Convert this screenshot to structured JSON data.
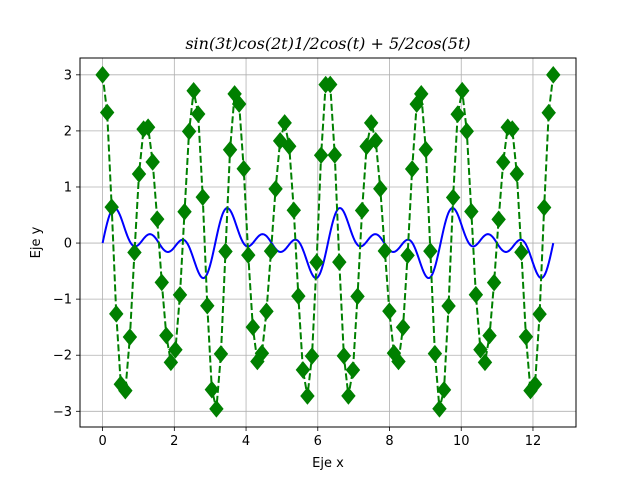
{
  "chart_data": {
    "type": "line",
    "title": "sin(3t)cos(2t)1/2cos(t) + 5/2cos(5t)",
    "xlabel": "Eje x",
    "ylabel": "Eje y",
    "xlim": [
      -0.63,
      13.2
    ],
    "ylim": [
      -3.28,
      3.3
    ],
    "xticks": [
      0,
      2,
      4,
      6,
      8,
      10,
      12
    ],
    "yticks": [
      -3,
      -2,
      -1,
      0,
      1,
      2,
      3
    ],
    "grid": true,
    "series": [
      {
        "expression": "sin(3t)cos(2t)1/2cos(t)",
        "color": "#0000ff",
        "style": "solid",
        "x_start": 0,
        "x_end": 12.566,
        "samples": 400,
        "marker": "none"
      },
      {
        "expression": "5/2cos(5t)",
        "color": "#008000",
        "style": "dashed",
        "x_start": 0,
        "x_end": 12.566,
        "samples": 100,
        "marker": "diamond"
      }
    ]
  }
}
